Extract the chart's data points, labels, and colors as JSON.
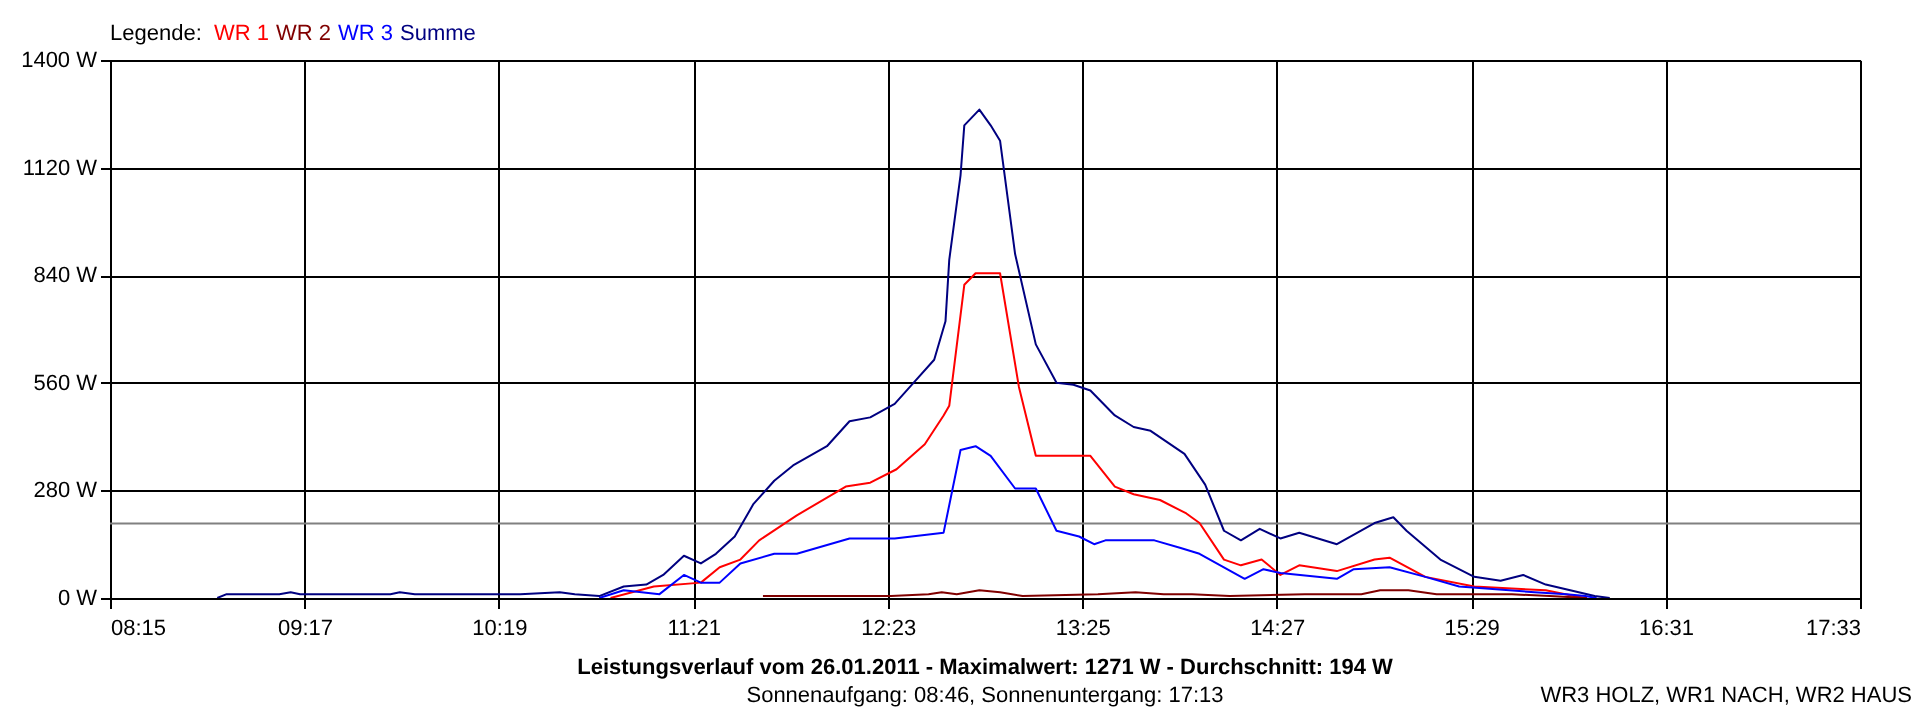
{
  "chart_data": {
    "type": "line",
    "title": "Leistungsverlauf vom 26.01.2011 - Maximalwert: 1271 W - Durchschnitt: 194 W",
    "subtitle": "Sonnenaufgang: 08:46, Sonnenuntergang: 17:13",
    "legend_title": "Legende:",
    "annotations": [
      "WR3 HOLZ, WR1 NACH, WR2 HAUS"
    ],
    "legend": "top left",
    "grid": true,
    "marker": "none",
    "line_style": "solid",
    "xlim": [
      8.25,
      17.55
    ],
    "ylim": [
      0,
      1400
    ],
    "xticks": [
      {
        "value": 8.25,
        "label": "08:15"
      },
      {
        "value": 9.2833,
        "label": "09:17"
      },
      {
        "value": 10.3167,
        "label": "10:19"
      },
      {
        "value": 11.35,
        "label": "11:21"
      },
      {
        "value": 12.3833,
        "label": "12:23"
      },
      {
        "value": 13.4167,
        "label": "13:25"
      },
      {
        "value": 14.45,
        "label": "14:27"
      },
      {
        "value": 15.4833,
        "label": "15:29"
      },
      {
        "value": 16.5167,
        "label": "16:31"
      },
      {
        "value": 17.55,
        "label": "17:33"
      }
    ],
    "yticks": [
      {
        "value": 0,
        "label": "0 W"
      },
      {
        "value": 280,
        "label": "280 W"
      },
      {
        "value": 560,
        "label": "560 W"
      },
      {
        "value": 840,
        "label": "840 W"
      },
      {
        "value": 1120,
        "label": "1120 W"
      },
      {
        "value": 1400,
        "label": "1400 W"
      }
    ],
    "ref_lines": [
      {
        "axis": "y",
        "value": 194,
        "color": "#808080"
      }
    ],
    "series": [
      {
        "name": "WR 1",
        "color": "#ff0000",
        "x": [
          10.91,
          11.14,
          11.39,
          11.49,
          11.6,
          11.7,
          11.9,
          12.16,
          12.29,
          12.43,
          12.58,
          12.68,
          12.71,
          12.79,
          12.85,
          12.98,
          13.08,
          13.17,
          13.46,
          13.59,
          13.69,
          13.83,
          13.97,
          14.04,
          14.17,
          14.26,
          14.37,
          14.47,
          14.57,
          14.77,
          14.97,
          15.05,
          15.24,
          15.5,
          15.88,
          16.03,
          16.09
        ],
        "values": [
          0,
          30,
          40,
          80,
          100,
          150,
          215,
          290,
          300,
          335,
          400,
          475,
          500,
          815,
          845,
          845,
          550,
          370,
          370,
          290,
          270,
          255,
          220,
          195,
          100,
          85,
          100,
          60,
          85,
          70,
          100,
          105,
          55,
          30,
          20,
          5,
          0
        ]
      },
      {
        "name": "WR 2",
        "color": "#800000",
        "x": [
          11.72,
          12.4,
          12.6,
          12.67,
          12.75,
          12.87,
          12.98,
          13.1,
          13.5,
          13.7,
          13.85,
          14.0,
          14.2,
          14.6,
          14.9,
          15.0,
          15.15,
          15.3,
          15.7,
          15.9,
          16.1
        ],
        "values": [
          5,
          5,
          10,
          15,
          10,
          20,
          15,
          5,
          10,
          15,
          10,
          10,
          5,
          10,
          10,
          20,
          20,
          10,
          10,
          5,
          0
        ]
      },
      {
        "name": "WR 3",
        "color": "#0000ff",
        "x": [
          10.85,
          10.98,
          11.17,
          11.3,
          11.39,
          11.49,
          11.6,
          11.78,
          11.9,
          12.18,
          12.42,
          12.68,
          12.77,
          12.85,
          12.93,
          13.06,
          13.17,
          13.28,
          13.4,
          13.48,
          13.54,
          13.8,
          13.94,
          14.04,
          14.28,
          14.38,
          14.47,
          14.77,
          14.86,
          15.05,
          15.24,
          15.42,
          15.82,
          15.99,
          16.09,
          16.15
        ],
        "values": [
          0,
          20,
          10,
          60,
          40,
          40,
          90,
          115,
          115,
          155,
          155,
          170,
          385,
          395,
          370,
          285,
          285,
          175,
          160,
          140,
          150,
          150,
          130,
          115,
          50,
          75,
          65,
          50,
          75,
          80,
          55,
          30,
          15,
          10,
          5,
          0
        ]
      },
      {
        "name": "Summe",
        "color": "#000080",
        "x": [
          8.82,
          8.87,
          9.15,
          9.21,
          9.26,
          9.74,
          9.79,
          9.87,
          10.43,
          10.64,
          10.72,
          10.85,
          10.98,
          11.1,
          11.19,
          11.3,
          11.39,
          11.47,
          11.57,
          11.67,
          11.78,
          11.88,
          12.06,
          12.18,
          12.29,
          12.42,
          12.52,
          12.63,
          12.69,
          12.71,
          12.77,
          12.79,
          12.87,
          12.93,
          12.98,
          13.06,
          13.17,
          13.28,
          13.37,
          13.46,
          13.59,
          13.69,
          13.78,
          13.96,
          14.07,
          14.17,
          14.26,
          14.36,
          14.47,
          14.57,
          14.77,
          14.97,
          15.07,
          15.14,
          15.32,
          15.5,
          15.64,
          15.76,
          15.88,
          16.01,
          16.14,
          16.22
        ],
        "values": [
          0,
          10,
          10,
          15,
          10,
          10,
          15,
          10,
          10,
          15,
          10,
          5,
          30,
          35,
          60,
          110,
          90,
          115,
          160,
          245,
          305,
          345,
          395,
          460,
          470,
          505,
          560,
          620,
          720,
          880,
          1100,
          1230,
          1271,
          1230,
          1190,
          895,
          660,
          560,
          555,
          540,
          475,
          445,
          435,
          375,
          295,
          175,
          150,
          180,
          155,
          170,
          140,
          195,
          210,
          175,
          100,
          55,
          45,
          60,
          35,
          20,
          5,
          0
        ]
      }
    ]
  }
}
